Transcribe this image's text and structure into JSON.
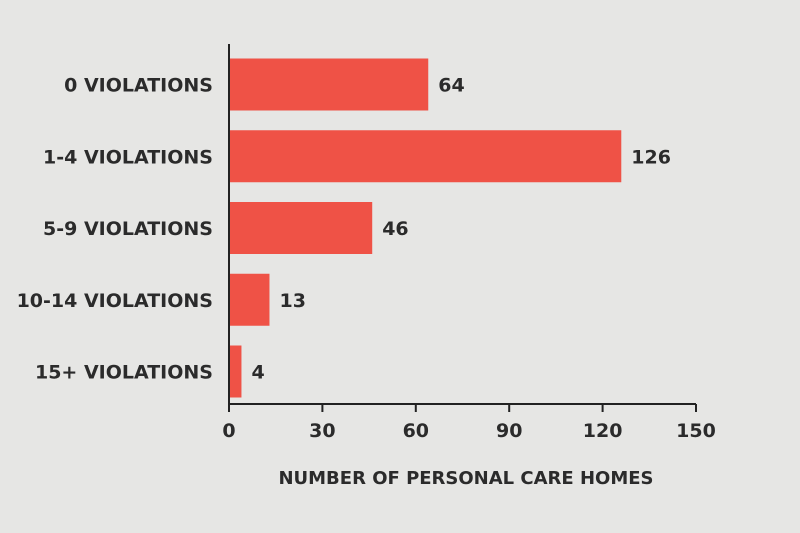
{
  "chart_data": {
    "type": "bar",
    "orientation": "horizontal",
    "categories": [
      "0 VIOLATIONS",
      "1-4 VIOLATIONS",
      "5-9 VIOLATIONS",
      "10-14 VIOLATIONS",
      "15+ VIOLATIONS"
    ],
    "values": [
      64,
      126,
      46,
      13,
      4
    ],
    "data_labels": [
      "64",
      "126",
      "46",
      "13",
      "4"
    ],
    "xlabel": "NUMBER OF PERSONAL CARE HOMES",
    "xlim": [
      0,
      150
    ],
    "xticks": [
      0,
      30,
      60,
      90,
      120,
      150
    ],
    "grid": false,
    "bar_color": "#ef5246"
  }
}
